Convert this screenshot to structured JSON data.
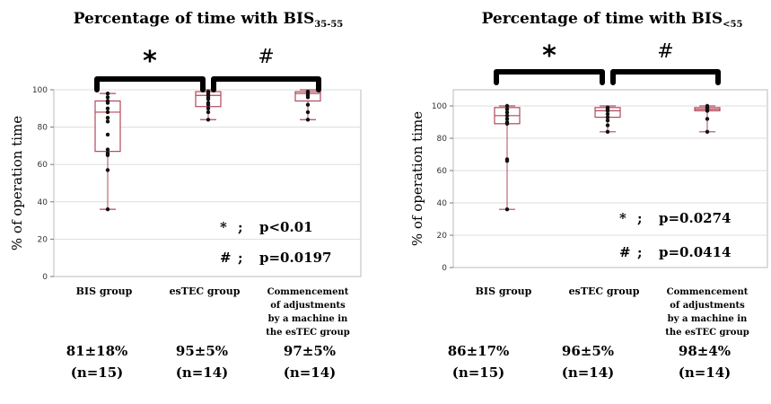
{
  "chart_data": [
    {
      "type": "box",
      "title": "Percentage of time with BIS",
      "title_sub": "35-55",
      "ylabel": "% of operation time",
      "ylim": [
        0,
        100
      ],
      "yticks": [
        "0",
        "20",
        "40",
        "60",
        "80",
        "100"
      ],
      "grid": "horizontal",
      "categories": [
        {
          "lines": [
            "BIS group"
          ],
          "stat": "81±18%",
          "n": "(n=15)"
        },
        {
          "lines": [
            "esTEC group"
          ],
          "stat": "95±5%",
          "n": "(n=14)"
        },
        {
          "lines": [
            "Commencement",
            "of adjustments",
            "by a machine in",
            "the esTEC group"
          ],
          "stat": "97±5%",
          "n": "(n=14)"
        }
      ],
      "boxes": [
        {
          "min": 36,
          "q1": 67,
          "median": 88,
          "q3": 94,
          "max": 98,
          "points": [
            98,
            96,
            94,
            93,
            90,
            88,
            85,
            83,
            76,
            68,
            66,
            65,
            57,
            36
          ]
        },
        {
          "min": 84,
          "q1": 91,
          "median": 97,
          "q3": 99,
          "max": 100,
          "points": [
            99,
            98,
            97,
            96,
            95,
            93,
            92,
            90,
            88,
            84
          ]
        },
        {
          "min": 84,
          "q1": 94,
          "median": 98,
          "q3": 99,
          "max": 100,
          "points": [
            99,
            98,
            97,
            96,
            92,
            88,
            84
          ]
        }
      ],
      "brackets": [
        {
          "symbol": "*",
          "from": 0,
          "to": 1
        },
        {
          "symbol": "#",
          "from": 1,
          "to": 2
        }
      ],
      "pvalues": [
        {
          "symbol": "*",
          "sep": ";",
          "text": "p<0.01"
        },
        {
          "symbol": "#",
          "sep": ";",
          "text": "p=0.0197"
        }
      ]
    },
    {
      "type": "box",
      "title": "Percentage of time with BIS",
      "title_sub": "<55",
      "ylabel": "% of operation time",
      "ylim": [
        0,
        110
      ],
      "yticks": [
        "0",
        "20",
        "40",
        "60",
        "80",
        "100"
      ],
      "grid": "horizontal",
      "categories": [
        {
          "lines": [
            "BIS group"
          ],
          "stat": "86±17%",
          "n": "(n=15)"
        },
        {
          "lines": [
            "esTEC group"
          ],
          "stat": "96±5%",
          "n": "(n=14)"
        },
        {
          "lines": [
            "Commencement",
            "of adjustments",
            "by a machine in",
            "the esTEC group"
          ],
          "stat": "98±4%",
          "n": "(n=14)"
        }
      ],
      "boxes": [
        {
          "min": 36,
          "q1": 89,
          "median": 94,
          "q3": 99,
          "max": 100,
          "points": [
            100,
            98,
            96,
            94,
            92,
            90,
            89,
            67,
            66,
            36
          ]
        },
        {
          "min": 84,
          "q1": 93,
          "median": 97,
          "q3": 99,
          "max": 100,
          "points": [
            99,
            98,
            97,
            95,
            93,
            91,
            88,
            84
          ]
        },
        {
          "min": 84,
          "q1": 97,
          "median": 98,
          "q3": 99,
          "max": 100,
          "points": [
            100,
            99,
            98,
            97,
            92,
            84
          ]
        }
      ],
      "brackets": [
        {
          "symbol": "*",
          "from": 0,
          "to": 1
        },
        {
          "symbol": "#",
          "from": 1,
          "to": 2
        }
      ],
      "pvalues": [
        {
          "symbol": "*",
          "sep": ";",
          "text": "p=0.0274"
        },
        {
          "symbol": "#",
          "sep": ";",
          "text": "p=0.0414"
        }
      ]
    }
  ]
}
